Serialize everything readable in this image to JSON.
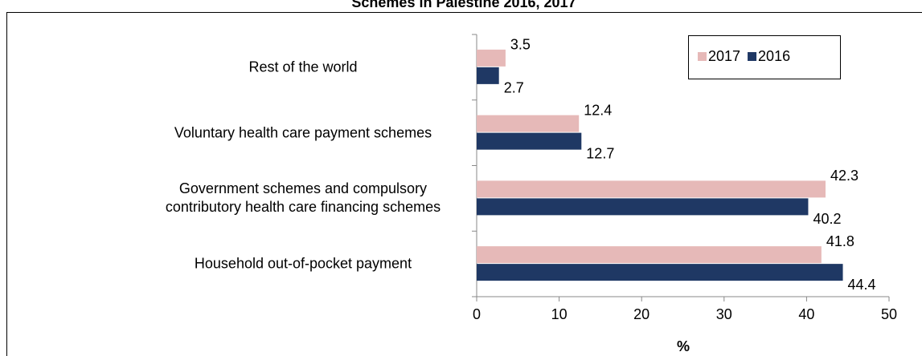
{
  "chart_data": {
    "type": "barh",
    "title": "Schemes in Palestine 2016, 2017",
    "xlabel": "%",
    "categories": [
      "Rest of the world",
      "Voluntary health care payment schemes",
      "Government schemes and compulsory contributory health care financing schemes",
      "Household out-of-pocket payment"
    ],
    "series": [
      {
        "name": "2017",
        "color": "#e6b9b8",
        "values": [
          3.5,
          12.4,
          42.3,
          41.8
        ]
      },
      {
        "name": "2016",
        "color": "#1f3864",
        "values": [
          2.7,
          12.7,
          40.2,
          44.4
        ]
      }
    ],
    "xlim": [
      0,
      50
    ],
    "xticks": [
      0,
      10,
      20,
      30,
      40,
      50
    ],
    "legend": "upper right"
  }
}
